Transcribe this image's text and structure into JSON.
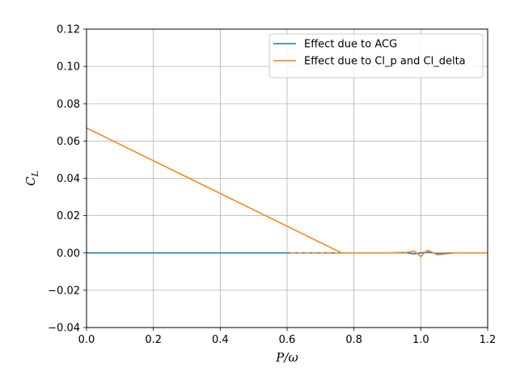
{
  "chart_data": {
    "type": "line",
    "title": "",
    "xlabel": "P/ω",
    "ylabel": "C_L",
    "xlim": [
      0,
      1.2
    ],
    "ylim": [
      -0.04,
      0.12
    ],
    "xticks": [
      0.0,
      0.2,
      0.4,
      0.6,
      0.8,
      1.0,
      1.2
    ],
    "yticks": [
      -0.04,
      -0.02,
      0.0,
      0.02,
      0.04,
      0.06,
      0.08,
      0.1,
      0.12
    ],
    "xtick_labels": [
      "0.0",
      "0.2",
      "0.4",
      "0.6",
      "0.8",
      "1.0",
      "1.2"
    ],
    "ytick_labels": [
      "−0.04",
      "−0.02",
      "0.00",
      "0.02",
      "0.04",
      "0.06",
      "0.08",
      "0.10",
      "0.12"
    ],
    "grid": true,
    "legend_position": "top-right",
    "series": [
      {
        "name": "Effect due to ACG",
        "color": "#1f77b4",
        "x": [
          0.0,
          0.6,
          0.9,
          0.95,
          0.98,
          1.0,
          1.02,
          1.05,
          1.1,
          1.2
        ],
        "y": [
          0.0,
          0.0,
          0.0,
          0.0002,
          -0.0005,
          0.0,
          0.0004,
          -0.0003,
          0.0,
          0.0
        ]
      },
      {
        "name": "Effect due to Cl_p and Cl_delta",
        "color": "#ff7f0e",
        "x": [
          0.0,
          0.763,
          0.8,
          0.85,
          0.9,
          0.95,
          0.98,
          1.0,
          1.02,
          1.05,
          1.1,
          1.2
        ],
        "y": [
          0.067,
          0.0,
          0.0,
          0.0,
          0.0,
          0.0,
          0.001,
          -0.002,
          0.0015,
          -0.001,
          0.0,
          0.0
        ]
      },
      {
        "name": "",
        "color": "#ff7f0e",
        "x": [
          0.61,
          0.76
        ],
        "y": [
          0.0,
          0.0
        ]
      }
    ]
  }
}
